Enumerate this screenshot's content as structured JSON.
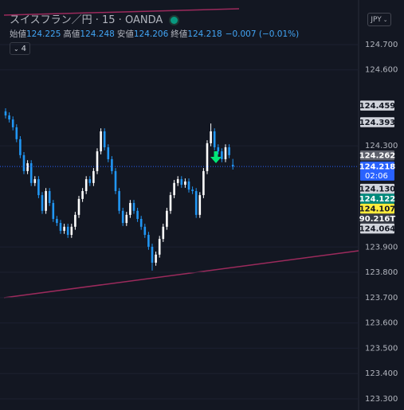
{
  "chart_data": {
    "type": "candlestick",
    "title": "スイスフラン／円 · 15 · OANDA",
    "ohlc_legend": [
      {
        "label": "始値",
        "value": 124.225
      },
      {
        "label": "高値",
        "value": 124.248
      },
      {
        "label": "安値",
        "value": 124.206
      },
      {
        "label": "終値",
        "value": 124.218
      }
    ],
    "change": "−0.007 (−0.01%)",
    "indicators_count": 4,
    "currency": "JPY",
    "up_color": "#ffffff",
    "down_color": "#2196f3",
    "ylim": [
      123.256,
      124.876
    ],
    "yticks": [
      {
        "value": 124.7,
        "label": "124.700"
      },
      {
        "value": 124.6,
        "label": "124.600"
      },
      {
        "value": 124.3,
        "label": "124.300"
      },
      {
        "value": 123.9,
        "label": "123.900"
      },
      {
        "value": 123.8,
        "label": "123.800"
      },
      {
        "value": 123.7,
        "label": "123.700"
      },
      {
        "value": 123.6,
        "label": "123.600"
      },
      {
        "value": 123.5,
        "label": "123.500"
      },
      {
        "value": 123.4,
        "label": "123.400"
      },
      {
        "value": 123.3,
        "label": "123.300"
      }
    ],
    "grid": true,
    "open": [
      124.436,
      124.42,
      124.404,
      124.373,
      124.326,
      124.263,
      124.2,
      124.231,
      124.153,
      124.168,
      124.105,
      124.043,
      124.121,
      124.074,
      124.011,
      123.995,
      123.964,
      123.98,
      123.948,
      123.98,
      124.027,
      124.09,
      124.121,
      124.168,
      124.153,
      124.2,
      124.278,
      124.357,
      124.294,
      124.247,
      124.2,
      124.121,
      124.043,
      123.995,
      124.027,
      124.074,
      124.043,
      124.011,
      123.98,
      123.948,
      123.901,
      123.838,
      123.87,
      123.932,
      123.98,
      124.043,
      124.105,
      124.153,
      124.168,
      124.146,
      124.159,
      124.127,
      124.121,
      124.027,
      124.105,
      124.2,
      124.31,
      124.357,
      124.294,
      124.278,
      124.247,
      124.294,
      124.225
    ],
    "high": [
      124.448,
      124.432,
      124.416,
      124.385,
      124.338,
      124.275,
      124.243,
      124.243,
      124.18,
      124.18,
      124.117,
      124.133,
      124.133,
      124.086,
      124.023,
      124.007,
      123.992,
      123.992,
      123.992,
      124.039,
      124.102,
      124.133,
      124.18,
      124.18,
      124.212,
      124.29,
      124.369,
      124.369,
      124.306,
      124.259,
      124.212,
      124.133,
      124.055,
      124.039,
      124.086,
      124.086,
      124.055,
      124.023,
      123.992,
      123.96,
      123.913,
      123.882,
      123.944,
      123.992,
      124.055,
      124.117,
      124.165,
      124.18,
      124.18,
      124.171,
      124.171,
      124.139,
      124.133,
      124.117,
      124.212,
      124.322,
      124.388,
      124.369,
      124.306,
      124.29,
      124.306,
      124.306,
      124.248
    ],
    "low": [
      124.408,
      124.392,
      124.361,
      124.314,
      124.251,
      124.188,
      124.188,
      124.141,
      124.141,
      124.093,
      124.031,
      124.031,
      124.062,
      123.999,
      123.983,
      123.952,
      123.952,
      123.936,
      123.936,
      123.968,
      124.015,
      124.078,
      124.109,
      124.141,
      124.141,
      124.188,
      124.266,
      124.282,
      124.235,
      124.188,
      124.109,
      124.031,
      123.983,
      123.983,
      124.015,
      124.031,
      123.999,
      123.968,
      123.936,
      123.889,
      123.807,
      123.826,
      123.858,
      123.92,
      123.968,
      124.031,
      124.093,
      124.141,
      124.134,
      124.134,
      124.115,
      124.109,
      124.015,
      124.015,
      124.093,
      124.188,
      124.298,
      124.282,
      124.266,
      124.235,
      124.235,
      124.251,
      124.206
    ],
    "close": [
      124.42,
      124.404,
      124.373,
      124.326,
      124.263,
      124.2,
      124.231,
      124.153,
      124.168,
      124.105,
      124.043,
      124.121,
      124.074,
      124.011,
      123.995,
      123.964,
      123.98,
      123.948,
      123.98,
      124.027,
      124.09,
      124.121,
      124.168,
      124.153,
      124.2,
      124.278,
      124.357,
      124.294,
      124.247,
      124.2,
      124.121,
      124.043,
      123.995,
      124.027,
      124.074,
      124.043,
      124.011,
      123.98,
      123.948,
      123.901,
      123.838,
      123.87,
      123.932,
      123.98,
      124.043,
      124.105,
      124.153,
      124.168,
      124.146,
      124.159,
      124.127,
      124.121,
      124.027,
      124.105,
      124.2,
      124.31,
      124.357,
      124.294,
      124.278,
      124.247,
      124.294,
      124.263,
      124.218
    ],
    "price_labels": [
      {
        "value": 124.459,
        "color": "#d1d4dc"
      },
      {
        "value": 124.393,
        "color": "#d1d4dc"
      },
      {
        "value": 124.262,
        "color": "#5d606b"
      },
      {
        "value": 124.218,
        "color": "#2962ff",
        "countdown": "02:06"
      },
      {
        "value": 124.13,
        "label": "124.130",
        "color": "#d1d4dc"
      },
      {
        "value": 124.122,
        "color": "#00897b"
      },
      {
        "value": 124.107,
        "color": "#ffeb3b"
      },
      {
        "label": "90.216T",
        "color": "#363a45"
      },
      {
        "value": 124.064,
        "color": "#d1d4dc"
      }
    ]
  }
}
